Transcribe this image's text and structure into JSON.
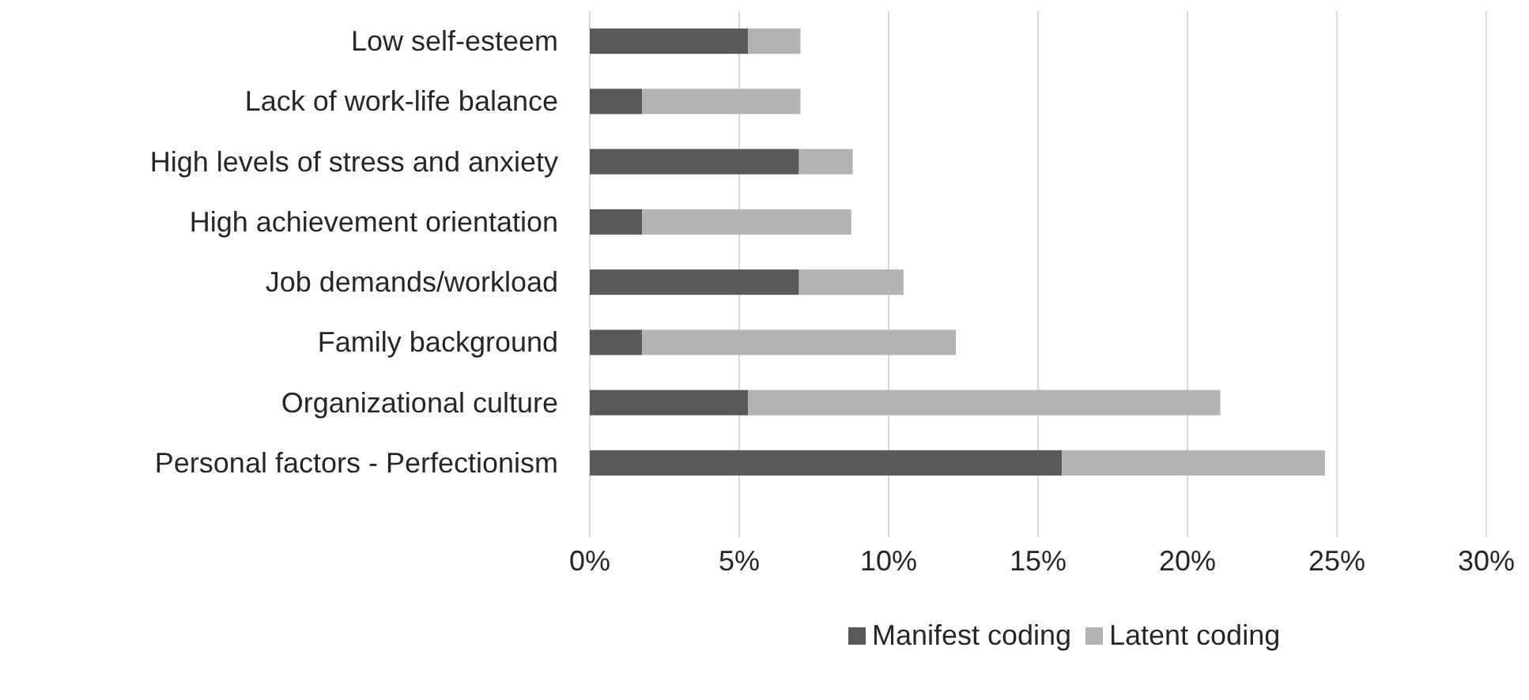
{
  "chart_data": {
    "type": "bar",
    "orientation": "horizontal",
    "stacked": true,
    "categories": [
      "Low self-esteem",
      "Lack of work-life balance",
      "High levels of stress and anxiety",
      "High achievement orientation",
      "Job demands/workload",
      "Family background",
      "Organizational culture",
      "Personal factors - Perfectionism"
    ],
    "series": [
      {
        "name": "Manifest coding",
        "color": "#595959",
        "values": [
          5.3,
          1.75,
          7.0,
          1.75,
          7.0,
          1.75,
          5.3,
          15.8
        ]
      },
      {
        "name": "Latent coding",
        "color": "#b3b3b3",
        "values": [
          1.75,
          5.3,
          1.8,
          7.0,
          3.5,
          10.5,
          15.8,
          8.8
        ]
      }
    ],
    "xlim": [
      0,
      30
    ],
    "xticks": [
      {
        "value": 0,
        "label": "0%"
      },
      {
        "value": 5,
        "label": "5%"
      },
      {
        "value": 10,
        "label": "10%"
      },
      {
        "value": 15,
        "label": "15%"
      },
      {
        "value": 20,
        "label": "20%"
      },
      {
        "value": 25,
        "label": "25%"
      },
      {
        "value": 30,
        "label": "30%"
      }
    ],
    "grid": "x",
    "legend": "bottom"
  }
}
